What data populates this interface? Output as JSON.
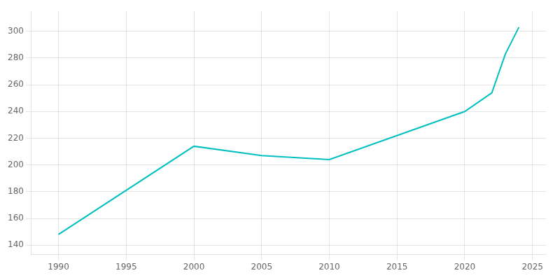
{
  "chart_data": {
    "type": "line",
    "x": [
      1990,
      2000,
      2005,
      2010,
      2020,
      2022,
      2023,
      2024
    ],
    "values": [
      148,
      214,
      207,
      204,
      240,
      254,
      283,
      303
    ],
    "color": "#00BFBF",
    "xlim": [
      1988,
      2026
    ],
    "ylim": [
      133,
      315
    ],
    "xticks": [
      1990,
      1995,
      2000,
      2005,
      2010,
      2015,
      2020,
      2025
    ],
    "yticks": [
      140,
      160,
      180,
      200,
      220,
      240,
      260,
      280,
      300
    ],
    "grid": true
  }
}
